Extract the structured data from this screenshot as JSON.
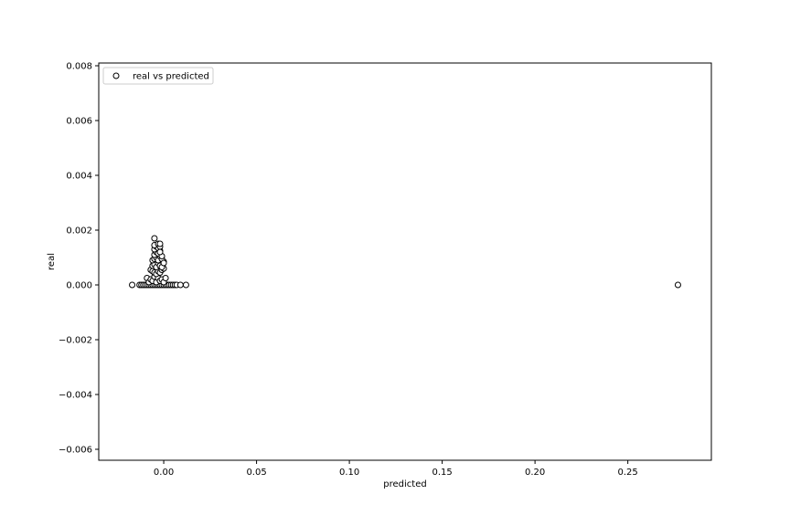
{
  "chart_data": {
    "type": "scatter",
    "title": "",
    "xlabel": "predicted",
    "ylabel": "real",
    "xlim": [
      -0.035,
      0.295
    ],
    "ylim": [
      -0.0064,
      0.0081
    ],
    "xticks": [
      0.0,
      0.05,
      0.1,
      0.15,
      0.2,
      0.25
    ],
    "xtick_labels": [
      "0.00",
      "0.05",
      "0.10",
      "0.15",
      "0.20",
      "0.25"
    ],
    "yticks": [
      -0.006,
      -0.004,
      -0.002,
      0.0,
      0.002,
      0.004,
      0.006,
      0.008
    ],
    "ytick_labels": [
      "−0.006",
      "−0.004",
      "−0.002",
      "0.000",
      "0.002",
      "0.004",
      "0.006",
      "0.008"
    ],
    "grid": false,
    "legend_position": "upper-left",
    "marker": "hollow-circle",
    "colors": {
      "marker_edge": "#000000",
      "marker_face": "#ffffff",
      "axes": "#000000"
    },
    "series": [
      {
        "name": "real vs predicted",
        "x": [
          -0.017,
          -0.013,
          -0.012,
          -0.011,
          -0.01,
          -0.009,
          -0.008,
          -0.007,
          -0.006,
          -0.005,
          -0.004,
          -0.003,
          -0.002,
          -0.001,
          0.0,
          0.001,
          0.002,
          0.003,
          0.004,
          0.005,
          0.006,
          0.007,
          0.009,
          0.012,
          -0.009,
          -0.008,
          -0.007,
          -0.006,
          -0.005,
          -0.004,
          -0.003,
          -0.002,
          -0.001,
          0.0,
          0.001,
          -0.007,
          -0.006,
          -0.005,
          -0.004,
          -0.003,
          -0.002,
          -0.001,
          0.0,
          -0.006,
          -0.005,
          -0.004,
          -0.003,
          -0.002,
          -0.001,
          0.0,
          -0.006,
          -0.005,
          -0.004,
          -0.003,
          -0.002,
          -0.001,
          0.0,
          -0.005,
          -0.004,
          -0.003,
          -0.002,
          -0.001,
          -0.005,
          -0.004,
          -0.003,
          -0.002,
          -0.005,
          -0.003,
          -0.002,
          -0.005,
          -0.002,
          0.277
        ],
        "y": [
          0.0,
          0.0,
          0.0,
          0.0,
          0.0,
          0.0,
          0.0,
          0.0,
          0.0,
          0.0,
          0.0,
          0.0,
          0.0,
          0.0,
          0.0,
          0.0,
          0.0,
          0.0,
          0.0,
          0.0,
          0.0,
          0.0,
          0.0,
          0.0,
          0.00025,
          0.0001,
          0.0002,
          0.00015,
          0.0003,
          0.0001,
          0.00025,
          0.00015,
          0.0002,
          0.0001,
          0.00025,
          0.00055,
          0.0005,
          0.00045,
          0.0004,
          0.0005,
          0.00045,
          0.00055,
          0.0006,
          0.0007,
          0.00075,
          0.00065,
          0.0008,
          0.0007,
          0.00065,
          0.00085,
          0.0009,
          0.00095,
          0.001,
          0.0009,
          0.00105,
          0.00095,
          0.0008,
          0.0011,
          0.0012,
          0.00115,
          0.00125,
          0.00105,
          0.0013,
          0.0014,
          0.00135,
          0.0012,
          0.00145,
          0.0015,
          0.0014,
          0.0017,
          0.0015,
          0.0
        ]
      }
    ]
  }
}
